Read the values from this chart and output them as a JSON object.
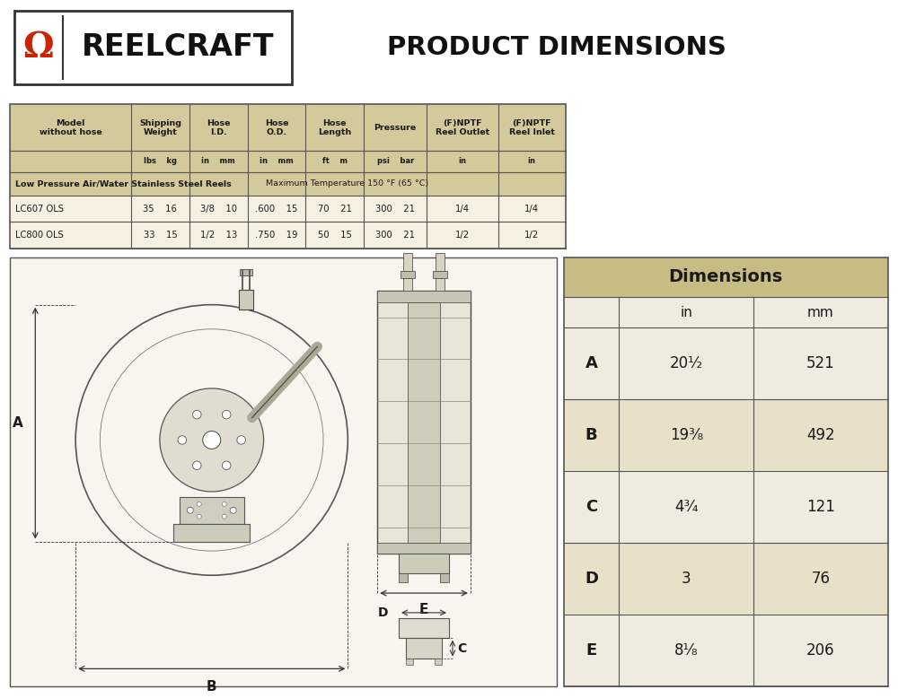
{
  "title_reelcraft": "REELCRAFT",
  "title_product": "PRODUCT DIMENSIONS",
  "bg_color": "#ffffff",
  "header_bg": "#d4c99a",
  "row_bg_light": "#f5f0e0",
  "dim_header_bg": "#c8bc85",
  "dim_row_alt1": "#f0ebe0",
  "dim_row_alt2": "#e8e0c8",
  "dimensions_title": "Dimensions",
  "dim_col_headers": [
    "",
    "in",
    "mm"
  ],
  "dim_rows": [
    [
      "A",
      "20¹⁄₂",
      "521"
    ],
    [
      "B",
      "19³⁄₈",
      "492"
    ],
    [
      "C",
      "4³⁄₄",
      "121"
    ],
    [
      "D",
      "3",
      "76"
    ],
    [
      "E",
      "8¹⁄₈",
      "206"
    ]
  ],
  "omega_color": "#cc2200",
  "border_color": "#555555",
  "text_dark": "#1a1a1a",
  "line_color": "#333333"
}
